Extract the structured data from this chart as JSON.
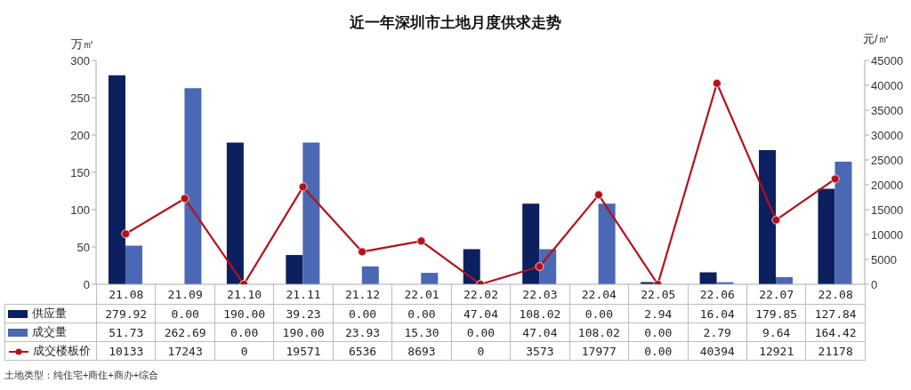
{
  "chart_data": {
    "type": "bar",
    "title": "近一年深圳市土地月度供求走势",
    "ylabel": "万㎡",
    "y2label": "元/㎡",
    "categories": [
      "21.08",
      "21.09",
      "21.10",
      "21.11",
      "21.12",
      "22.01",
      "22.02",
      "22.03",
      "22.04",
      "22.05",
      "22.06",
      "22.07",
      "22.08"
    ],
    "series": [
      {
        "name": "供应量",
        "color": "#0c1f5e",
        "values": [
          279.92,
          0,
          190,
          39.23,
          0,
          0,
          47.04,
          108.02,
          0,
          2.94,
          16.04,
          179.85,
          127.84
        ],
        "value_labels": [
          "279.92",
          "0.00",
          "190.00",
          "39.23",
          "0.00",
          "0.00",
          "47.04",
          "108.02",
          "0.00",
          "2.94",
          "16.04",
          "179.85",
          "127.84"
        ]
      },
      {
        "name": "成交量",
        "color": "#4a68b3",
        "values": [
          51.73,
          262.69,
          0,
          190,
          23.93,
          15.3,
          0,
          47.04,
          108.02,
          0,
          2.79,
          9.64,
          164.42
        ],
        "value_labels": [
          "51.73",
          "262.69",
          "0.00",
          "190.00",
          "23.93",
          "15.30",
          "0.00",
          "47.04",
          "108.02",
          "0.00",
          "2.79",
          "9.64",
          "164.42"
        ]
      },
      {
        "name": "成交楼板价",
        "type": "line",
        "axis": "y2",
        "color": "#b3111c",
        "values": [
          10133,
          17243,
          0,
          19571,
          6536,
          8693,
          0,
          3573,
          17977,
          0,
          40394,
          12921,
          21178
        ],
        "value_labels": [
          "10133",
          "17243",
          "0",
          "19571",
          "6536",
          "8693",
          "0",
          "3573",
          "17977",
          "0.00",
          "40394",
          "12921",
          "21178"
        ]
      }
    ],
    "ylim": [
      0,
      300
    ],
    "yticks": [
      0,
      50,
      100,
      150,
      200,
      250,
      300
    ],
    "y2lim": [
      0,
      45000
    ],
    "y2ticks": [
      0,
      5000,
      10000,
      15000,
      20000,
      25000,
      30000,
      35000,
      40000,
      45000
    ],
    "legend": "bottom",
    "marker": "circle",
    "annotations": [
      "土地类型：纯住宅+商住+商办+综合"
    ]
  }
}
